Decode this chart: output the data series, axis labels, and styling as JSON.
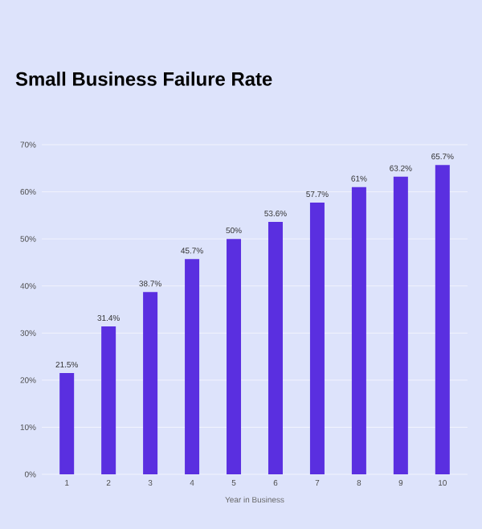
{
  "chart_data": {
    "type": "bar",
    "title": "Small Business Failure Rate",
    "xlabel": "Year in Business",
    "categories": [
      "1",
      "2",
      "3",
      "4",
      "5",
      "6",
      "7",
      "8",
      "9",
      "10"
    ],
    "values": [
      21.5,
      31.4,
      38.7,
      45.7,
      50,
      53.6,
      57.7,
      61,
      63.2,
      65.7
    ],
    "value_labels": [
      "21.5%",
      "31.4%",
      "38.7%",
      "45.7%",
      "50%",
      "53.6%",
      "57.7%",
      "61%",
      "63.2%",
      "65.7%"
    ],
    "color": "#5a2fe0",
    "ylim": [
      0,
      70
    ],
    "yticks": [
      {
        "value": 0,
        "label": "0%"
      },
      {
        "value": 10,
        "label": "10%"
      },
      {
        "value": 20,
        "label": "20%"
      },
      {
        "value": 30,
        "label": "30%"
      },
      {
        "value": 40,
        "label": "40%"
      },
      {
        "value": 50,
        "label": "50%"
      },
      {
        "value": 60,
        "label": "60%"
      },
      {
        "value": 70,
        "label": "70%"
      }
    ],
    "grid": "y"
  }
}
